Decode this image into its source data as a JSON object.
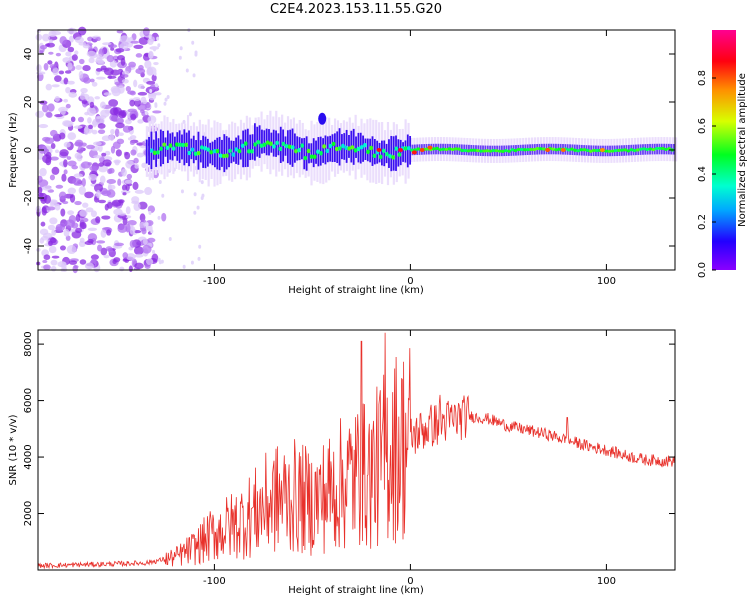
{
  "title": "C2E4.2023.153.11.55.G20",
  "colors": {
    "snr_line": "#e8302a",
    "frame": "#000000",
    "background": "#ffffff"
  },
  "chart_data": [
    {
      "type": "heatmap",
      "xlabel": "Height of straight line (km)",
      "ylabel": "Frequency (Hz)",
      "xlim": [
        -190,
        135
      ],
      "ylim": [
        -50,
        50
      ],
      "x_ticks": [
        "-100",
        "0",
        "100"
      ],
      "x_tick_values": [
        -100,
        0,
        100
      ],
      "y_ticks": [
        "40",
        "20",
        "0",
        "-20",
        "-40"
      ],
      "y_tick_values": [
        40,
        20,
        0,
        -20,
        -40
      ],
      "grid": false,
      "colorbar": {
        "label": "Normalized spectral amplitude",
        "range": [
          0,
          1
        ],
        "ticks": [
          "0.0",
          "0.2",
          "0.4",
          "0.6",
          "0.8"
        ],
        "tick_values": [
          0,
          0.2,
          0.4,
          0.6,
          0.8
        ],
        "colormap": "rainbow (purple-blue-cyan-green-yellow-orange-red-magenta)"
      },
      "features": [
        {
          "name": "broadband noise region",
          "x_range": [
            -190,
            -125
          ],
          "y_range": [
            -50,
            50
          ],
          "amplitude": 0.05
        },
        {
          "name": "signal band",
          "x_range": [
            -135,
            135
          ],
          "center_frequency": 0,
          "amplitude_max": 1.0
        },
        {
          "name": "isolated blob",
          "x": -45,
          "y": 13,
          "amplitude": 0.1
        }
      ]
    },
    {
      "type": "line",
      "xlabel": "Height of straight line (km)",
      "ylabel": "SNR (10 * v/v)",
      "xlim": [
        -190,
        135
      ],
      "ylim": [
        0,
        8500
      ],
      "x_ticks": [
        "-100",
        "0",
        "100"
      ],
      "x_tick_values": [
        -100,
        0,
        100
      ],
      "y_ticks": [
        "8000",
        "6000",
        "4000",
        "2000"
      ],
      "y_tick_values": [
        8000,
        6000,
        4000,
        2000
      ],
      "grid": false,
      "series": [
        {
          "x": [
            -190,
            -160,
            -135,
            -120,
            -110,
            -100,
            -90,
            -80,
            -70,
            -60,
            -50,
            -40,
            -30,
            -20,
            -15,
            -10,
            -5,
            0,
            10,
            20,
            30,
            40,
            50,
            60,
            70,
            80,
            90,
            100,
            110,
            120,
            135
          ],
          "y": [
            150,
            200,
            250,
            450,
            800,
            1300,
            1600,
            2000,
            2500,
            2600,
            2400,
            2800,
            3300,
            3400,
            3800,
            4400,
            4400,
            4700,
            5100,
            5300,
            5450,
            5350,
            5100,
            4950,
            4800,
            4600,
            4400,
            4250,
            4050,
            3900,
            3850
          ]
        }
      ],
      "spikes": [
        {
          "x": -25,
          "y": 8100
        },
        {
          "x": -13,
          "y": 8400
        },
        {
          "x": 15,
          "y": 6200
        },
        {
          "x": 80,
          "y": 5400
        }
      ]
    }
  ]
}
